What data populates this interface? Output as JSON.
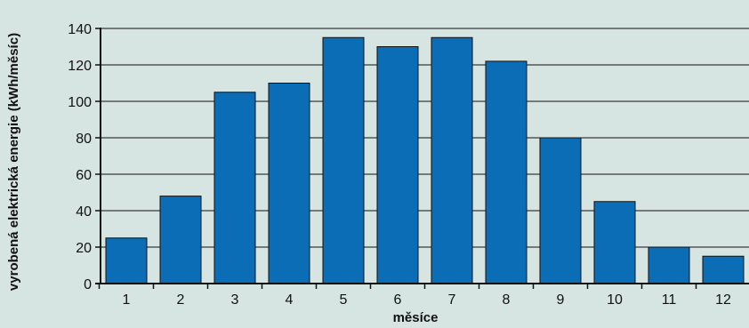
{
  "chart_data": {
    "type": "bar",
    "categories": [
      "1",
      "2",
      "3",
      "4",
      "5",
      "6",
      "7",
      "8",
      "9",
      "10",
      "11",
      "12"
    ],
    "values": [
      25,
      48,
      105,
      110,
      135,
      130,
      135,
      122,
      80,
      45,
      20,
      15
    ],
    "xlabel": "měsíce",
    "ylabel": "vyrobená elektrická energie (kWh/měsíc)",
    "ylim": [
      0,
      140
    ],
    "yticks": [
      0,
      20,
      40,
      60,
      80,
      100,
      120,
      140
    ],
    "grid": true,
    "legend": "none",
    "colors": {
      "background": "#d6e4e2",
      "bar_fill": "#0b6db5",
      "bar_stroke": "#111111",
      "grid": "#111111",
      "axis": "#111111"
    }
  }
}
